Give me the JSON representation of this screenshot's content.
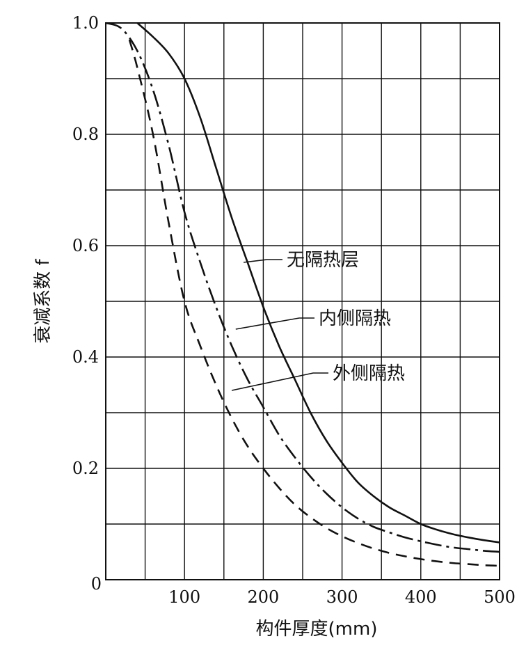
{
  "chart_data": {
    "type": "line",
    "title": "",
    "xlabel": "构件厚度(mm)",
    "ylabel": "衰减系数 f",
    "xlim": [
      0,
      500
    ],
    "ylim": [
      0,
      1.0
    ],
    "grid": true,
    "x_ticks": [
      100,
      200,
      300,
      400,
      500
    ],
    "x_tick_labels": [
      "100",
      "200",
      "300",
      "400",
      "500"
    ],
    "y_ticks": [
      0,
      0.2,
      0.4,
      0.6,
      0.8,
      1.0
    ],
    "y_tick_labels": [
      "0",
      "0.2",
      "0.4",
      "0.6",
      "0.8",
      "1.0"
    ],
    "series": [
      {
        "name": "无隔热层",
        "line_style": "solid",
        "x": [
          40,
          60,
          80,
          100,
          120,
          140,
          160,
          180,
          200,
          220,
          240,
          260,
          280,
          300,
          320,
          340,
          360,
          380,
          400,
          420,
          440,
          460,
          480,
          500
        ],
        "y": [
          1.0,
          0.975,
          0.945,
          0.9,
          0.83,
          0.74,
          0.65,
          0.57,
          0.49,
          0.42,
          0.36,
          0.3,
          0.25,
          0.21,
          0.175,
          0.15,
          0.13,
          0.115,
          0.1,
          0.09,
          0.082,
          0.076,
          0.071,
          0.067
        ]
      },
      {
        "name": "内侧隔热",
        "line_style": "dash-dot",
        "x": [
          0,
          20,
          40,
          60,
          80,
          100,
          120,
          140,
          160,
          180,
          200,
          220,
          240,
          260,
          280,
          300,
          320,
          340,
          360,
          380,
          400,
          420,
          440,
          460,
          480,
          500
        ],
        "y": [
          1.0,
          0.99,
          0.95,
          0.88,
          0.78,
          0.66,
          0.57,
          0.49,
          0.42,
          0.36,
          0.31,
          0.26,
          0.22,
          0.185,
          0.155,
          0.13,
          0.11,
          0.095,
          0.085,
          0.076,
          0.069,
          0.063,
          0.058,
          0.055,
          0.052,
          0.05
        ]
      },
      {
        "name": "外侧隔热",
        "line_style": "dashed",
        "x": [
          30,
          40,
          60,
          80,
          100,
          120,
          140,
          160,
          180,
          200,
          220,
          240,
          260,
          280,
          300,
          320,
          340,
          360,
          380,
          400,
          420,
          440,
          460,
          480,
          500
        ],
        "y": [
          0.97,
          0.92,
          0.8,
          0.64,
          0.5,
          0.42,
          0.35,
          0.29,
          0.24,
          0.2,
          0.165,
          0.135,
          0.112,
          0.093,
          0.078,
          0.066,
          0.056,
          0.048,
          0.042,
          0.037,
          0.033,
          0.03,
          0.028,
          0.026,
          0.025
        ]
      }
    ],
    "annotations": [
      {
        "text": "无隔热层",
        "series": "无隔热层",
        "anchor_x": 175,
        "anchor_y": 0.57
      },
      {
        "text": "内侧隔热",
        "series": "内侧隔热",
        "anchor_x": 165,
        "anchor_y": 0.45
      },
      {
        "text": "外侧隔热",
        "series": "外侧隔热",
        "anchor_x": 160,
        "anchor_y": 0.34
      }
    ]
  }
}
